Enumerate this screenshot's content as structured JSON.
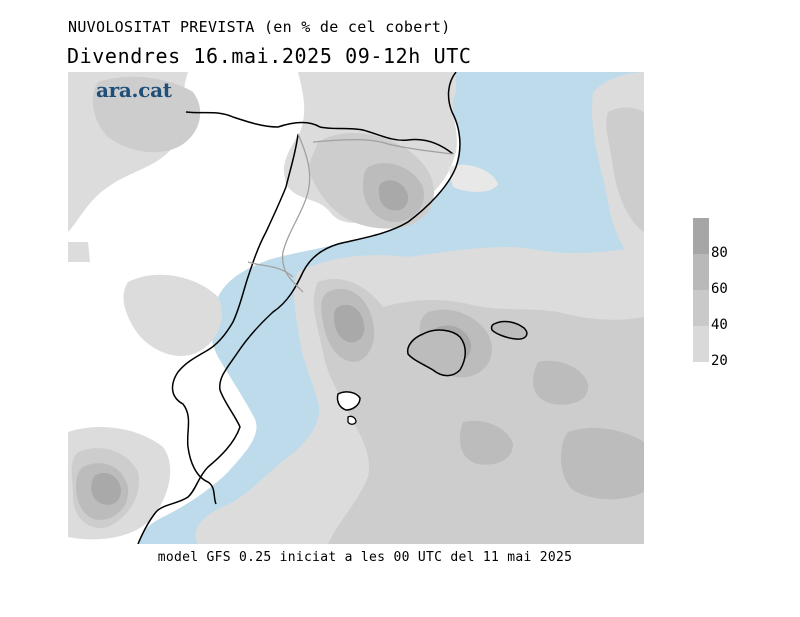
{
  "title": {
    "line1": "NUVOLOSITAT PREVISTA (en % de cel cobert)",
    "line2": "Divendres  16.mai.2025 09-12h UTC"
  },
  "logo": {
    "text": "ara.cat",
    "color": "#1f4e79"
  },
  "footer": "model GFS 0.25 iniciat a les 00 UTC del 11 mai 2025",
  "legend": {
    "labels": [
      "80",
      "60",
      "40",
      "20"
    ],
    "bands": [
      {
        "from": 80,
        "to": 100,
        "color": "#a6a6a6"
      },
      {
        "from": 60,
        "to": 80,
        "color": "#b9b9b9"
      },
      {
        "from": 40,
        "to": 60,
        "color": "#c9c9c9"
      },
      {
        "from": 20,
        "to": 40,
        "color": "#d9d9d9"
      },
      {
        "from": 0,
        "to": 20,
        "color": "#e6e6e6"
      }
    ]
  },
  "colors": {
    "sea": "#bddbeb",
    "land_clear": "#ffffff",
    "cloud_20": "#dcdcdc",
    "cloud_40": "#cdcdcd",
    "cloud_60": "#bcbcbc",
    "cloud_80": "#a9a9a9",
    "coastline": "#000000",
    "borders": "#a0a0a0"
  }
}
